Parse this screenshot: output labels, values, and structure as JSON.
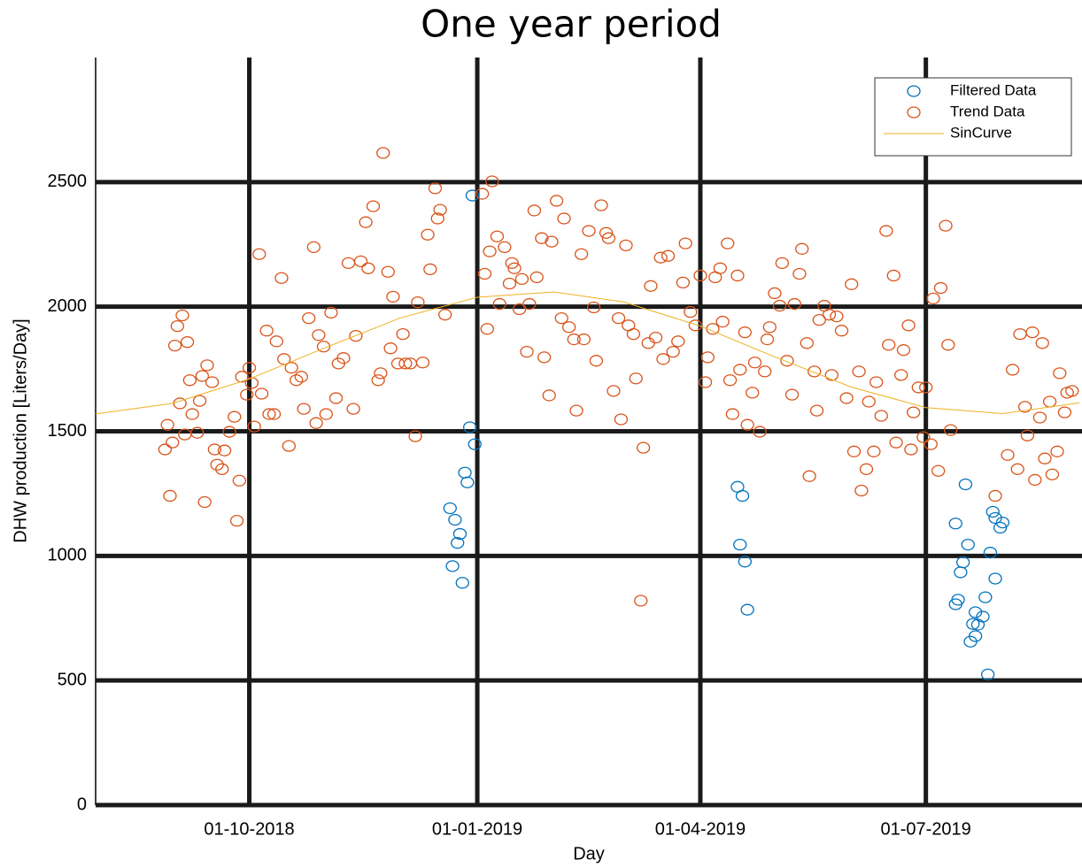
{
  "chart_data": {
    "type": "scatter",
    "title": "One year period",
    "x_label": "Day",
    "y_label": "DHW production [Liters/Day]",
    "xlim": [
      "2018-07-31",
      "2019-09-02"
    ],
    "xticks": [
      {
        "value": "2018-10-01",
        "label": "01-10-2018"
      },
      {
        "value": "2019-01-01",
        "label": "01-01-2019"
      },
      {
        "value": "2019-04-01",
        "label": "01-04-2019"
      },
      {
        "value": "2019-07-01",
        "label": "01-07-2019"
      }
    ],
    "ylim": [
      0,
      3000
    ],
    "yticks": [
      0,
      500,
      1000,
      1500,
      2000,
      2500
    ],
    "grid": true,
    "legend": "northeast",
    "series": [
      {
        "name": "Filtered Data",
        "type": "scatter",
        "color": "#0072BD",
        "x": [
          "2018-12-30",
          "2018-12-29",
          "2018-12-31",
          "2018-12-27",
          "2018-12-28",
          "2018-12-21",
          "2018-12-23",
          "2018-12-25",
          "2018-12-24",
          "2018-12-22",
          "2018-12-26",
          "2019-04-16",
          "2019-04-18",
          "2019-04-17",
          "2019-04-19",
          "2019-04-20",
          "2019-07-17",
          "2019-07-13",
          "2019-07-18",
          "2019-07-16",
          "2019-07-15",
          "2019-07-27",
          "2019-07-28",
          "2019-07-29",
          "2019-08-01",
          "2019-07-31",
          "2019-07-29",
          "2019-07-13",
          "2019-07-14",
          "2019-07-25",
          "2019-07-21",
          "2019-07-20",
          "2019-07-22",
          "2019-07-19",
          "2019-07-21",
          "2019-07-24",
          "2019-07-26"
        ],
        "values": [
          2446,
          1516,
          1448,
          1334,
          1295,
          1191,
          1145,
          1088,
          1052,
          959,
          892,
          1277,
          1241,
          1045,
          977,
          784,
          1287,
          1130,
          1045,
          974,
          934,
          1013,
          1177,
          1152,
          1134,
          1113,
          909,
          806,
          824,
          834,
          678,
          727,
          724,
          656,
          774,
          756,
          524
        ]
      },
      {
        "name": "Trend Data",
        "type": "scatter",
        "color": "#D95319",
        "x": [
          "2018-08-28",
          "2018-08-29",
          "2018-08-30",
          "2018-08-31",
          "2018-09-01",
          "2018-09-02",
          "2018-09-03",
          "2018-09-04",
          "2018-09-05",
          "2018-09-06",
          "2018-09-07",
          "2018-09-08",
          "2018-09-10",
          "2018-09-11",
          "2018-09-12",
          "2018-09-13",
          "2018-09-14",
          "2018-09-16",
          "2018-09-17",
          "2018-09-18",
          "2018-09-20",
          "2018-09-21",
          "2018-09-23",
          "2018-09-25",
          "2018-09-26",
          "2018-09-27",
          "2018-09-28",
          "2018-09-30",
          "2018-10-01",
          "2018-10-02",
          "2018-10-03",
          "2018-10-05",
          "2018-10-06",
          "2018-10-08",
          "2018-10-09",
          "2018-10-11",
          "2018-10-12",
          "2018-10-14",
          "2018-10-15",
          "2018-10-17",
          "2018-10-18",
          "2018-10-20",
          "2018-10-22",
          "2018-10-23",
          "2018-10-25",
          "2018-10-27",
          "2018-10-28",
          "2018-10-29",
          "2018-10-31",
          "2018-11-01",
          "2018-11-03",
          "2018-11-05",
          "2018-11-06",
          "2018-11-08",
          "2018-11-10",
          "2018-11-12",
          "2018-11-13",
          "2018-11-15",
          "2018-11-17",
          "2018-11-18",
          "2018-11-20",
          "2018-11-22",
          "2018-11-23",
          "2018-11-24",
          "2018-11-26",
          "2018-11-27",
          "2018-11-28",
          "2018-11-30",
          "2018-12-02",
          "2018-12-03",
          "2018-12-05",
          "2018-12-07",
          "2018-12-08",
          "2018-12-10",
          "2018-12-12",
          "2018-12-13",
          "2018-12-15",
          "2018-12-16",
          "2018-12-17",
          "2018-12-19",
          "2019-01-03",
          "2019-01-04",
          "2019-01-05",
          "2019-01-06",
          "2019-01-07",
          "2019-01-09",
          "2019-01-10",
          "2019-01-12",
          "2019-01-14",
          "2019-01-15",
          "2019-01-16",
          "2019-01-18",
          "2019-01-19",
          "2019-01-21",
          "2019-01-22",
          "2019-01-24",
          "2019-01-25",
          "2019-01-27",
          "2019-01-28",
          "2019-01-30",
          "2019-01-31",
          "2019-02-02",
          "2019-02-04",
          "2019-02-05",
          "2019-02-07",
          "2019-02-09",
          "2019-02-10",
          "2019-02-12",
          "2019-02-13",
          "2019-02-15",
          "2019-02-17",
          "2019-02-18",
          "2019-02-20",
          "2019-02-22",
          "2019-02-23",
          "2019-02-25",
          "2019-02-27",
          "2019-02-28",
          "2019-03-02",
          "2019-03-03",
          "2019-03-05",
          "2019-03-06",
          "2019-03-08",
          "2019-03-09",
          "2019-03-11",
          "2019-03-12",
          "2019-03-14",
          "2019-03-16",
          "2019-03-17",
          "2019-03-19",
          "2019-03-21",
          "2019-03-23",
          "2019-03-25",
          "2019-03-26",
          "2019-03-28",
          "2019-03-30",
          "2019-04-01",
          "2019-04-03",
          "2019-04-04",
          "2019-04-06",
          "2019-04-07",
          "2019-04-09",
          "2019-04-10",
          "2019-04-12",
          "2019-04-13",
          "2019-04-14",
          "2019-04-16",
          "2019-04-17",
          "2019-04-19",
          "2019-04-20",
          "2019-04-22",
          "2019-04-23",
          "2019-04-25",
          "2019-04-27",
          "2019-04-28",
          "2019-04-29",
          "2019-05-01",
          "2019-05-03",
          "2019-05-04",
          "2019-05-06",
          "2019-05-08",
          "2019-05-09",
          "2019-05-11",
          "2019-05-12",
          "2019-05-14",
          "2019-05-15",
          "2019-05-17",
          "2019-05-18",
          "2019-05-19",
          "2019-05-21",
          "2019-05-23",
          "2019-05-24",
          "2019-05-26",
          "2019-05-28",
          "2019-05-30",
          "2019-06-01",
          "2019-06-02",
          "2019-06-04",
          "2019-06-05",
          "2019-06-07",
          "2019-06-08",
          "2019-06-10",
          "2019-06-11",
          "2019-06-13",
          "2019-06-15",
          "2019-06-16",
          "2019-06-18",
          "2019-06-19",
          "2019-06-21",
          "2019-06-22",
          "2019-06-24",
          "2019-06-25",
          "2019-06-26",
          "2019-06-28",
          "2019-06-30",
          "2019-07-01",
          "2019-07-03",
          "2019-07-04",
          "2019-07-06",
          "2019-07-07",
          "2019-07-09",
          "2019-07-10",
          "2019-07-11",
          "2019-07-29",
          "2019-08-03",
          "2019-08-05",
          "2019-08-07",
          "2019-08-08",
          "2019-08-10",
          "2019-08-11",
          "2019-08-13",
          "2019-08-14",
          "2019-08-16",
          "2019-08-17",
          "2019-08-18",
          "2019-08-20",
          "2019-08-21",
          "2019-08-23",
          "2019-08-24",
          "2019-08-26",
          "2019-08-27",
          "2019-08-29"
        ],
        "values": [
          1427,
          1526,
          1241,
          1455,
          1844,
          1922,
          1612,
          1965,
          1487,
          1858,
          1705,
          1569,
          1494,
          1622,
          1722,
          1216,
          1765,
          1697,
          1427,
          1366,
          1348,
          1423,
          1498,
          1558,
          1141,
          1302,
          1719,
          1647,
          1755,
          1694,
          1519,
          2211,
          1651,
          1904,
          1569,
          1569,
          1861,
          2115,
          1790,
          1441,
          1755,
          1705,
          1719,
          1590,
          1954,
          2239,
          1533,
          1886,
          1840,
          1569,
          1976,
          1633,
          1772,
          1794,
          2175,
          1590,
          1883,
          2182,
          2339,
          2154,
          2403,
          1705,
          1733,
          2617,
          2140,
          1833,
          2040,
          1772,
          1890,
          1772,
          1772,
          1480,
          2018,
          1776,
          2289,
          2150,
          2475,
          2354,
          2389,
          1968,
          2453,
          2132,
          1911,
          2222,
          2503,
          2282,
          2011,
          2239,
          2093,
          2175,
          2154,
          1990,
          2111,
          1819,
          2011,
          2386,
          2118,
          2275,
          1797,
          1644,
          2261,
          2425,
          1954,
          2354,
          1918,
          1869,
          1583,
          2211,
          1869,
          2304,
          1997,
          1783,
          2407,
          2296,
          2275,
          1662,
          1954,
          1548,
          2246,
          1925,
          1890,
          1712,
          820,
          1434,
          1854,
          2083,
          1876,
          2197,
          1790,
          2204,
          1819,
          1861,
          2097,
          2254,
          1979,
          1925,
          2125,
          1697,
          1797,
          1911,
          2118,
          2154,
          1940,
          2254,
          1705,
          1569,
          2125,
          1747,
          1897,
          1526,
          1655,
          1776,
          1498,
          1740,
          1869,
          1918,
          2054,
          2004,
          2175,
          1783,
          1647,
          2011,
          2132,
          2232,
          1854,
          1320,
          1740,
          1583,
          1947,
          2004,
          1968,
          1726,
          1961,
          1904,
          1633,
          2090,
          1419,
          1740,
          1262,
          1348,
          1619,
          1419,
          1697,
          1562,
          2304,
          1847,
          2125,
          1455,
          1726,
          1826,
          1925,
          1427,
          1576,
          1676,
          1476,
          1676,
          1448,
          2033,
          1341,
          2075,
          2325,
          1847,
          1505,
          1241,
          1405,
          1747,
          1348,
          1890,
          1598,
          1483,
          1897,
          1305,
          1555,
          1854,
          1391,
          1619,
          1327,
          1419,
          1733,
          1576,
          1655,
          1662
        ]
      },
      {
        "name": "SinCurve",
        "type": "line",
        "color": "#EDB120",
        "x": [
          "2018-07-31",
          "2018-08-31",
          "2018-10-01",
          "2018-11-01",
          "2018-12-01",
          "2019-01-01",
          "2019-02-01",
          "2019-03-01",
          "2019-04-01",
          "2019-05-01",
          "2019-06-01",
          "2019-07-01",
          "2019-08-01",
          "2019-09-01"
        ],
        "values": [
          1570,
          1612,
          1710,
          1837,
          1955,
          2038,
          2059,
          2019,
          1922,
          1799,
          1677,
          1595,
          1571,
          1614
        ]
      }
    ]
  }
}
